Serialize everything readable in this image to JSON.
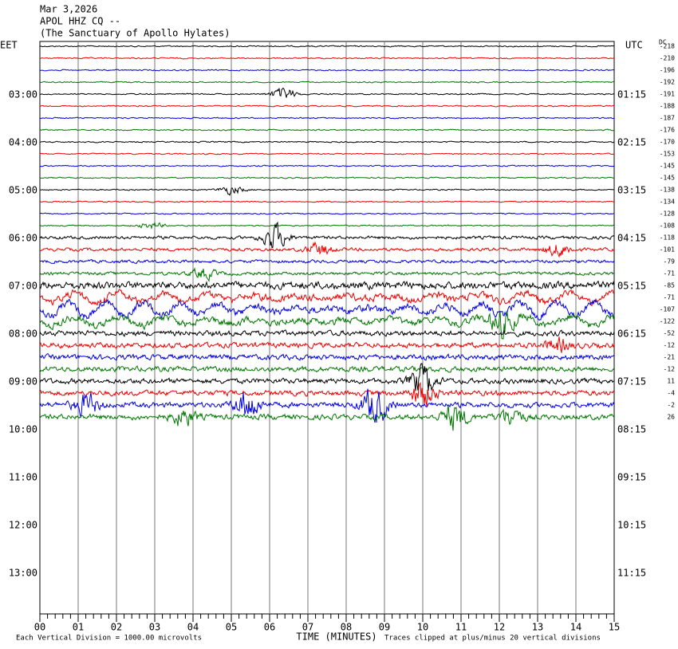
{
  "header": {
    "lines": [
      "Mar 3,2026",
      "APOL HHZ CQ --",
      "(The Sanctuary of Apollo Hylates)"
    ]
  },
  "left_axis": {
    "zone": "EET",
    "labels": [
      "03:00",
      "04:00",
      "05:00",
      "06:00",
      "07:00",
      "08:00",
      "09:00",
      "10:00",
      "11:00",
      "12:00",
      "13:00"
    ]
  },
  "right_axis": {
    "zone": "UTC",
    "labels": [
      "01:15",
      "02:15",
      "03:15",
      "04:15",
      "05:15",
      "06:15",
      "07:15",
      "08:15",
      "09:15",
      "10:15",
      "11:15"
    ]
  },
  "dc": {
    "heading": "DC",
    "values": [
      "-218",
      "-210",
      "-196",
      "-192",
      "-191",
      "-188",
      "-187",
      "-176",
      "-170",
      "-153",
      "-145",
      "-145",
      "-138",
      "-134",
      "-128",
      "-108",
      "-118",
      "-101",
      "-79",
      "-71",
      "-85",
      "-71",
      "-107",
      "-122",
      "-52",
      "-12",
      "-21",
      "-12",
      "11",
      "-4",
      "-2",
      "26"
    ]
  },
  "x_axis": {
    "labels": [
      "00",
      "01",
      "02",
      "03",
      "04",
      "05",
      "06",
      "07",
      "08",
      "09",
      "10",
      "11",
      "12",
      "13",
      "14",
      "15"
    ],
    "title": "TIME (MINUTES)"
  },
  "footer": {
    "scale": "Each Vertical Division = 1000.00 microvolts",
    "clip": "Traces clipped at plus/minus 20 vertical divisions"
  }
}
